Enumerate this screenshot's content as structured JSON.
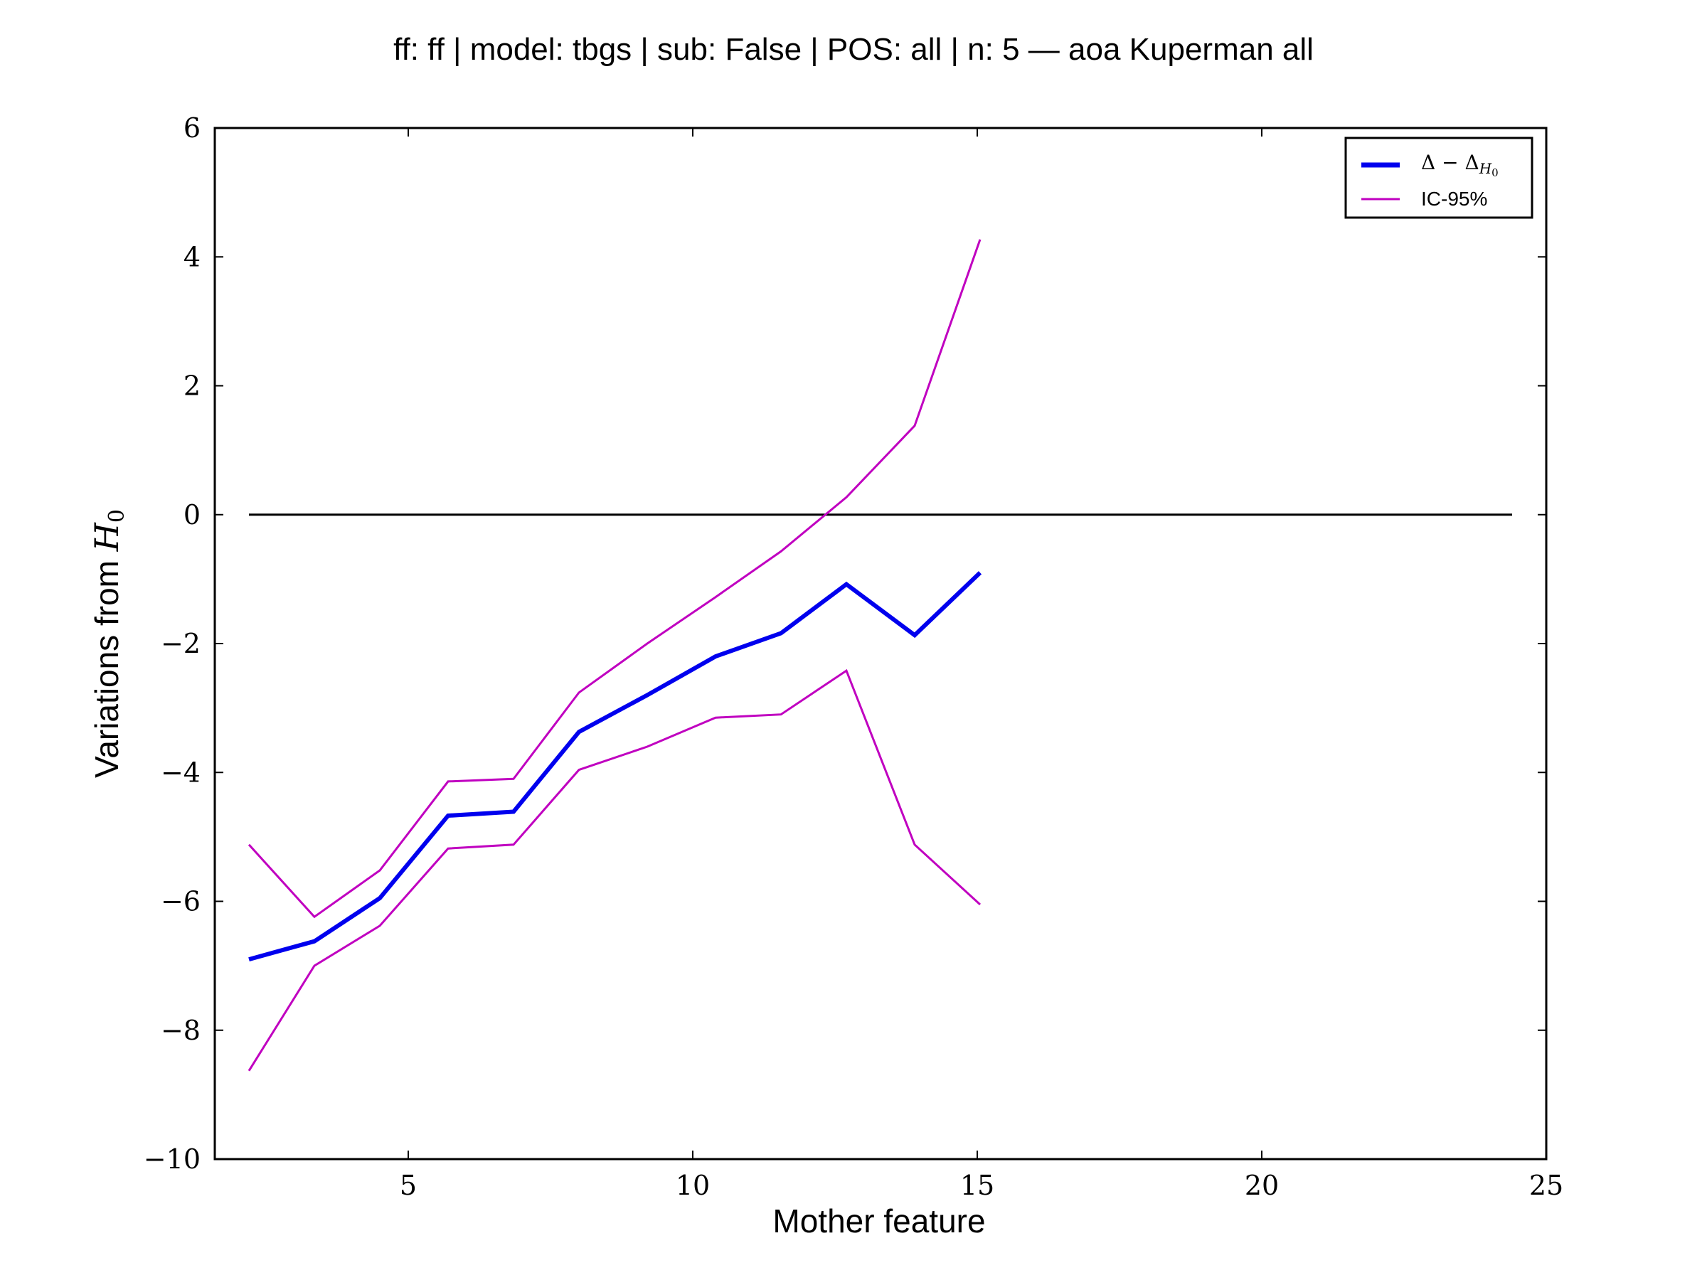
{
  "chart_data": {
    "type": "line",
    "title": "ff: ff | model: tbgs | sub: False | POS: all | n: 5 — aoa Kuperman all",
    "xlabel": "Mother feature",
    "ylabel_text": "Variations from ",
    "ylabel_math": "H",
    "ylabel_sub": "0",
    "xlim": [
      1.6,
      25
    ],
    "ylim": [
      -10,
      6
    ],
    "xticks": [
      5,
      10,
      15,
      20,
      25
    ],
    "yticks": [
      6,
      4,
      2,
      0,
      -2,
      -4,
      -6,
      -8,
      -10
    ],
    "xtick_labels": [
      "5",
      "10",
      "15",
      "20",
      "25"
    ],
    "ytick_labels": [
      "6",
      "4",
      "2",
      "0",
      "−2",
      "−4",
      "−6",
      "−8",
      "−10"
    ],
    "grid": false,
    "legend_position": "top-right",
    "legend": {
      "delta_main": "Δ − Δ",
      "delta_sub": "H",
      "delta_subsub": "0",
      "ci_label": "IC-95%"
    },
    "reference_line": {
      "y": 0,
      "x_start": 2.2,
      "x_end": 24.4,
      "color": "#000000"
    },
    "x": [
      2.2,
      3.35,
      4.5,
      5.7,
      6.85,
      8.0,
      9.2,
      10.4,
      11.55,
      12.7,
      13.9,
      15.05
    ],
    "series": [
      {
        "key": "delta",
        "color": "#0000ee",
        "values": [
          -6.9,
          -6.62,
          -5.95,
          -4.67,
          -4.61,
          -3.37,
          -2.8,
          -2.2,
          -1.84,
          -1.08,
          -1.87,
          -0.9
        ]
      },
      {
        "key": "ci_upper",
        "color": "#c000c0",
        "values": [
          -5.12,
          -6.24,
          -5.52,
          -4.14,
          -4.1,
          -2.76,
          -2.0,
          -1.28,
          -0.57,
          0.27,
          1.38,
          4.27
        ]
      },
      {
        "key": "ci_lower",
        "color": "#c000c0",
        "values": [
          -8.63,
          -7.0,
          -6.38,
          -5.18,
          -5.12,
          -3.96,
          -3.6,
          -3.15,
          -3.1,
          -2.42,
          -5.12,
          -6.05
        ]
      }
    ]
  }
}
